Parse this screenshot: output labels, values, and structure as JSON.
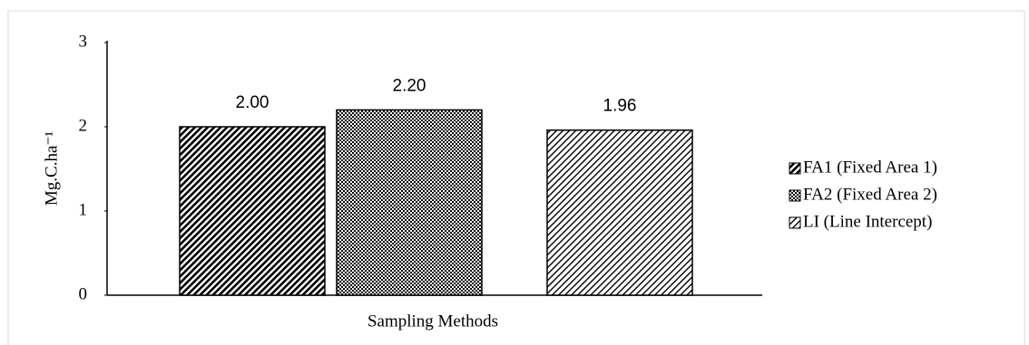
{
  "chart_data": {
    "type": "bar",
    "x_label": "Sampling Methods",
    "y_label": "Mg.C.ha⁻¹",
    "categories": [
      null
    ],
    "series": [
      {
        "name": "FA1 (Fixed Area 1)",
        "color": "#000000",
        "pattern": "dense-diagonal",
        "values": [
          2.0
        ],
        "value_labels": [
          "2.00"
        ]
      },
      {
        "name": "FA2 (Fixed Area 2)",
        "color": "#000000",
        "pattern": "checker",
        "values": [
          2.2
        ],
        "value_labels": [
          "2.20"
        ]
      },
      {
        "name": "LI (Line Intercept)",
        "color": "#000000",
        "pattern": "light-diagonal",
        "values": [
          1.96
        ],
        "value_labels": [
          "1.96"
        ]
      }
    ],
    "ylim": [
      0,
      3
    ],
    "yticks": [
      0,
      1,
      2,
      3
    ],
    "grid": false,
    "legend": "right"
  }
}
